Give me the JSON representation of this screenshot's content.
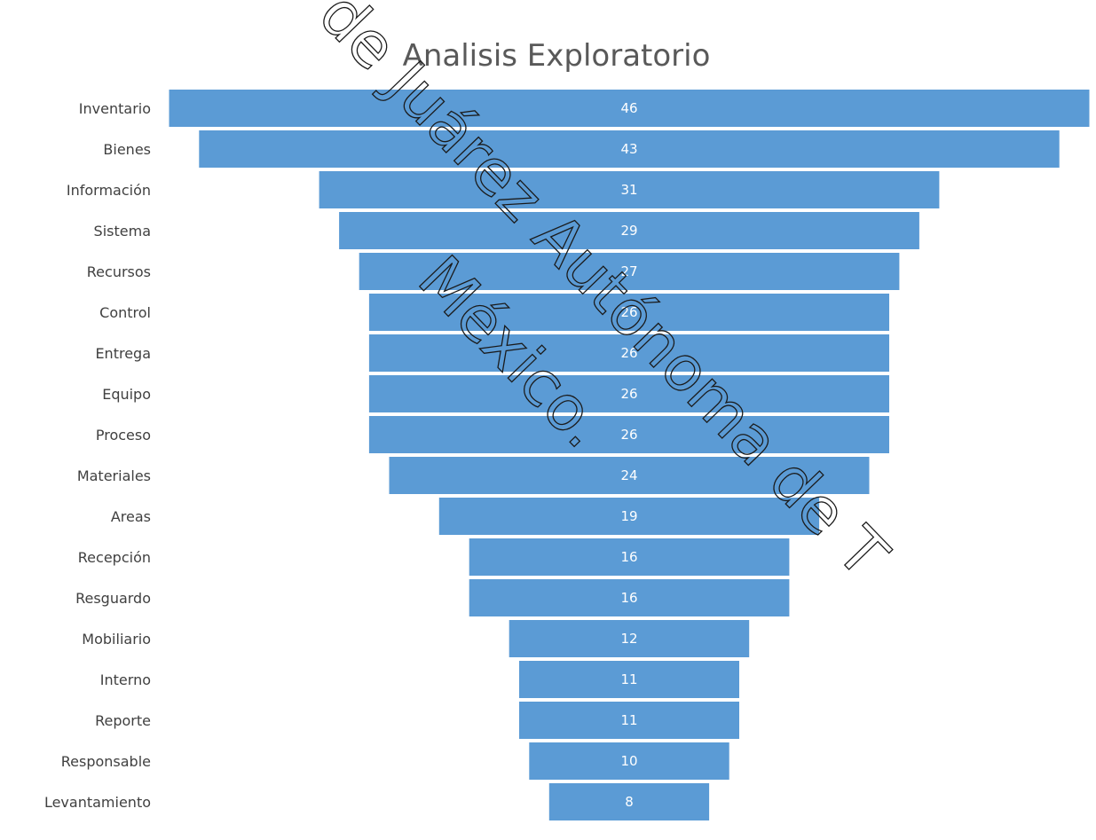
{
  "chart_data": {
    "type": "bar",
    "subtype": "funnel",
    "title": "Analisis Exploratorio",
    "orientation": "horizontal",
    "categories": [
      "Inventario",
      "Bienes",
      "Información",
      "Sistema",
      "Recursos",
      "Control",
      "Entrega",
      "Equipo",
      "Proceso",
      "Materiales",
      "Areas",
      "Recepción",
      "Resguardo",
      "Mobiliario",
      "Interno",
      "Reporte",
      "Responsable",
      "Levantamiento"
    ],
    "values": [
      46,
      43,
      31,
      29,
      27,
      26,
      26,
      26,
      26,
      24,
      19,
      16,
      16,
      12,
      11,
      11,
      10,
      8
    ],
    "data_labels": true,
    "bar_color": "#5b9bd5",
    "legend": "none",
    "grid": false
  },
  "watermark": {
    "lines": [
      "de Juárez Autónoma de T",
      "México."
    ]
  }
}
